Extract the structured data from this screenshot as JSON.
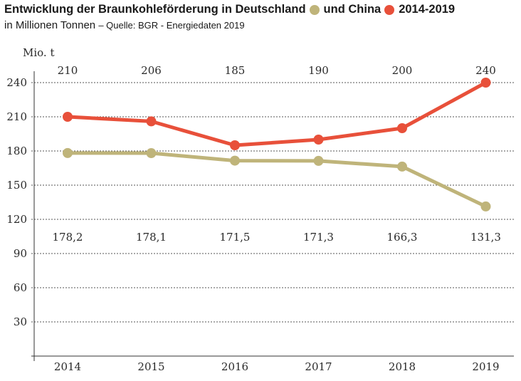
{
  "header": {
    "title_part1": "Entwicklung der Braunkohleförderung in Deutschland",
    "title_part2": "und China",
    "title_part3": "2014-2019",
    "subtitle_units": "in Millionen Tonnen",
    "subtitle_source": "– Quelle: BGR - Energiedaten 2019"
  },
  "colors": {
    "germany": "#bfb47a",
    "china": "#e8503a",
    "grid": "#555555",
    "axis": "#333333"
  },
  "chart_data": {
    "type": "line",
    "title": "Entwicklung der Braunkohleförderung in Deutschland und China 2014-2019",
    "ylabel": "Mio. t",
    "xlabel": "",
    "ylim": [
      0,
      240
    ],
    "yticks": [
      30,
      60,
      90,
      120,
      150,
      180,
      210,
      240
    ],
    "grid": true,
    "categories": [
      "2014",
      "2015",
      "2016",
      "2017",
      "2018",
      "2019"
    ],
    "series": [
      {
        "name": "Deutschland",
        "values": [
          178.2,
          178.1,
          171.5,
          171.3,
          166.3,
          131.3
        ],
        "labels": [
          "178,2",
          "178,1",
          "171,5",
          "171,3",
          "166,3",
          "131,3"
        ]
      },
      {
        "name": "China",
        "values": [
          210,
          206,
          185,
          190,
          200,
          240
        ],
        "labels": [
          "210",
          "206",
          "185",
          "190",
          "200",
          "240"
        ]
      }
    ]
  }
}
